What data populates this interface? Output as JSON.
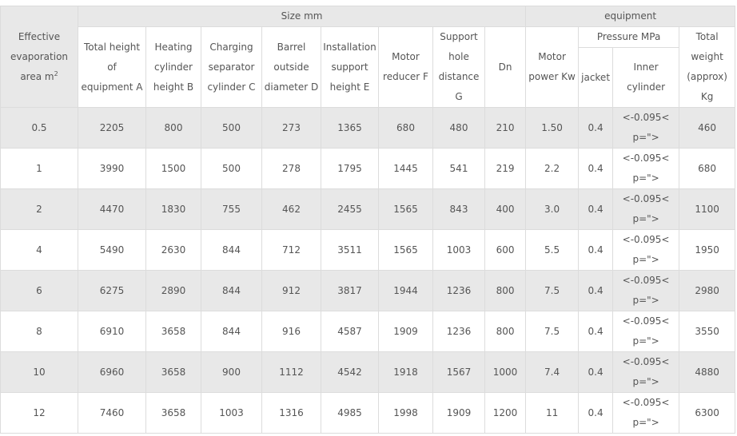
{
  "header": {
    "area": "Effective evaporation area m",
    "area_sup": "2",
    "size_group": "Size mm",
    "equipment_group": "equipment",
    "columns": [
      "Total height of equipment A",
      "Heating cylinder height B",
      "Charging separator cylinder C",
      "Barrel outside diameter D",
      "Installation support height E",
      "Motor reducer F",
      "Support hole distance G",
      "Dn",
      "Motor power Kw"
    ],
    "pressure_group": "Pressure MPa",
    "jacket": "jacket",
    "inner": "Inner cylinder",
    "weight": "Total weight (approx) Kg"
  },
  "rows": [
    [
      "0.5",
      "2205",
      "800",
      "500",
      "273",
      "1365",
      "680",
      "480",
      "210",
      "1.50",
      "0.4",
      "<-0.095< p=\">",
      "460"
    ],
    [
      "1",
      "3990",
      "1500",
      "500",
      "278",
      "1795",
      "1445",
      "541",
      "219",
      "2.2",
      "0.4",
      "<-0.095< p=\">",
      "680"
    ],
    [
      "2",
      "4470",
      "1830",
      "755",
      "462",
      "2455",
      "1565",
      "843",
      "400",
      "3.0",
      "0.4",
      "<-0.095< p=\">",
      "1100"
    ],
    [
      "4",
      "5490",
      "2630",
      "844",
      "712",
      "3511",
      "1565",
      "1003",
      "600",
      "5.5",
      "0.4",
      "<-0.095< p=\">",
      "1950"
    ],
    [
      "6",
      "6275",
      "2890",
      "844",
      "912",
      "3817",
      "1944",
      "1236",
      "800",
      "7.5",
      "0.4",
      "<-0.095< p=\">",
      "2980"
    ],
    [
      "8",
      "6910",
      "3658",
      "844",
      "916",
      "4587",
      "1909",
      "1236",
      "800",
      "7.5",
      "0.4",
      "<-0.095< p=\">",
      "3550"
    ],
    [
      "10",
      "6960",
      "3658",
      "900",
      "1112",
      "4542",
      "1918",
      "1567",
      "1000",
      "7.4",
      "0.4",
      "<-0.095< p=\">",
      "4880"
    ],
    [
      "12",
      "7460",
      "3658",
      "1003",
      "1316",
      "4985",
      "1998",
      "1909",
      "1200",
      "11",
      "0.4",
      "<-0.095< p=\">",
      "6300"
    ]
  ]
}
